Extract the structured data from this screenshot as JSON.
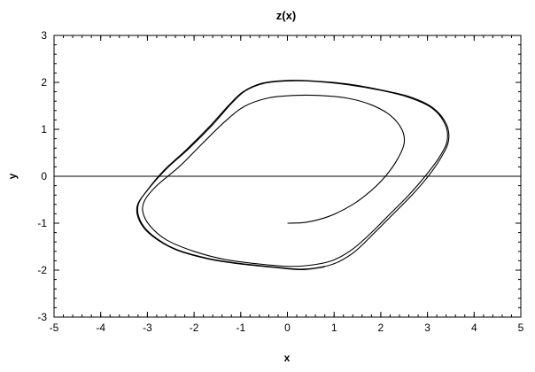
{
  "chart_data": {
    "type": "line",
    "title": "z(x)",
    "xlabel": "x",
    "ylabel": "y",
    "xlim": [
      -5,
      5
    ],
    "ylim": [
      -3,
      3
    ],
    "x_ticks": [
      "-5",
      "-4",
      "-3",
      "-2",
      "-1",
      "0",
      "1",
      "2",
      "3",
      "4",
      "5"
    ],
    "y_ticks": [
      "3",
      "2",
      "1",
      "0",
      "-1",
      "-2",
      "-3"
    ],
    "grid": false,
    "zero_line": true,
    "series": [
      {
        "color": "#000000",
        "points": [
          [
            0.0,
            -1.0
          ],
          [
            0.4,
            -0.98
          ],
          [
            0.9,
            -0.85
          ],
          [
            1.4,
            -0.6
          ],
          [
            1.8,
            -0.3
          ],
          [
            2.1,
            0.0
          ],
          [
            2.35,
            0.35
          ],
          [
            2.5,
            0.7
          ],
          [
            2.45,
            1.0
          ],
          [
            2.2,
            1.3
          ],
          [
            1.8,
            1.52
          ],
          [
            1.3,
            1.66
          ],
          [
            0.7,
            1.72
          ],
          [
            0.1,
            1.72
          ],
          [
            -0.4,
            1.67
          ],
          [
            -0.9,
            1.5
          ],
          [
            -1.3,
            1.2
          ],
          [
            -1.8,
            0.72
          ],
          [
            -2.3,
            0.22
          ],
          [
            -2.8,
            -0.2
          ],
          [
            -3.05,
            -0.5
          ],
          [
            -3.1,
            -0.75
          ],
          [
            -2.95,
            -1.05
          ],
          [
            -2.6,
            -1.35
          ],
          [
            -2.0,
            -1.6
          ],
          [
            -1.3,
            -1.78
          ],
          [
            -0.5,
            -1.88
          ],
          [
            0.1,
            -1.92
          ],
          [
            0.6,
            -1.88
          ],
          [
            1.0,
            -1.78
          ],
          [
            1.4,
            -1.55
          ],
          [
            1.8,
            -1.2
          ],
          [
            2.2,
            -0.8
          ],
          [
            2.6,
            -0.4
          ],
          [
            2.95,
            0.0
          ],
          [
            3.25,
            0.4
          ],
          [
            3.42,
            0.75
          ],
          [
            3.38,
            1.1
          ],
          [
            3.1,
            1.45
          ],
          [
            2.6,
            1.68
          ],
          [
            2.0,
            1.83
          ],
          [
            1.3,
            1.95
          ],
          [
            0.6,
            2.02
          ],
          [
            0.0,
            2.03
          ],
          [
            -0.5,
            1.98
          ],
          [
            -0.9,
            1.82
          ],
          [
            -1.2,
            1.55
          ],
          [
            -1.6,
            1.1
          ],
          [
            -2.1,
            0.6
          ],
          [
            -2.6,
            0.15
          ],
          [
            -3.0,
            -0.3
          ],
          [
            -3.2,
            -0.62
          ],
          [
            -3.15,
            -0.95
          ],
          [
            -2.9,
            -1.25
          ],
          [
            -2.4,
            -1.55
          ],
          [
            -1.7,
            -1.75
          ],
          [
            -1.0,
            -1.86
          ],
          [
            -0.3,
            -1.93
          ],
          [
            0.3,
            -1.98
          ],
          [
            0.8,
            -1.92
          ],
          [
            1.1,
            -1.82
          ],
          [
            1.45,
            -1.6
          ],
          [
            1.85,
            -1.22
          ],
          [
            2.25,
            -0.82
          ],
          [
            2.65,
            -0.42
          ],
          [
            3.0,
            -0.02
          ],
          [
            3.28,
            0.38
          ],
          [
            3.45,
            0.75
          ],
          [
            3.4,
            1.12
          ],
          [
            3.1,
            1.47
          ],
          [
            2.6,
            1.7
          ],
          [
            1.95,
            1.85
          ],
          [
            1.25,
            1.97
          ],
          [
            0.55,
            2.03
          ],
          [
            -0.05,
            2.04
          ],
          [
            -0.55,
            1.98
          ],
          [
            -0.95,
            1.8
          ],
          [
            -1.25,
            1.52
          ],
          [
            -1.65,
            1.08
          ],
          [
            -2.15,
            0.58
          ],
          [
            -2.65,
            0.12
          ],
          [
            -3.02,
            -0.32
          ],
          [
            -3.22,
            -0.64
          ],
          [
            -3.16,
            -0.97
          ],
          [
            -2.9,
            -1.27
          ],
          [
            -2.4,
            -1.56
          ],
          [
            -1.7,
            -1.76
          ],
          [
            -1.0,
            -1.87
          ],
          [
            -0.3,
            -1.94
          ],
          [
            0.3,
            -1.99
          ],
          [
            0.8,
            -1.93
          ]
        ]
      }
    ]
  }
}
